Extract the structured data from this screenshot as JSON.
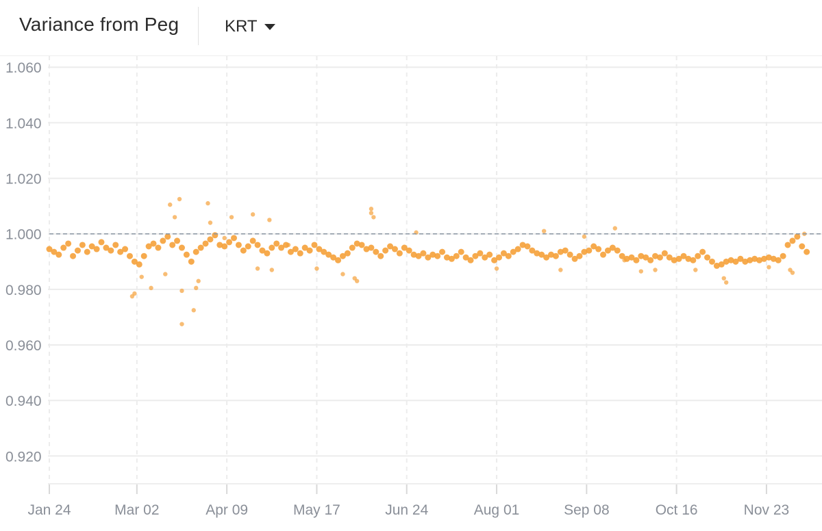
{
  "header": {
    "title": "Variance from Peg",
    "selector": {
      "value": "KRT"
    }
  },
  "colors": {
    "point": "#f5a13a",
    "grid": "#ececec",
    "peg_line": "#8a96a3",
    "tick_text": "#8a8f98"
  },
  "chart_data": {
    "type": "scatter",
    "title": "",
    "xlabel": "",
    "ylabel": "",
    "ylim": [
      0.91,
      1.064
    ],
    "xlim": [
      "Jan 24",
      "Dec 10"
    ],
    "y_ticks": [
      1.06,
      1.04,
      1.02,
      1.0,
      0.98,
      0.96,
      0.94,
      0.92
    ],
    "y_tick_labels": [
      "1.060",
      "1.040",
      "1.020",
      "1.000",
      "0.980",
      "0.960",
      "0.940",
      "0.920"
    ],
    "x_ticks": [
      "Jan 24",
      "Mar 02",
      "Apr 09",
      "May 17",
      "Jun 24",
      "Aug 01",
      "Sep 08",
      "Oct 16",
      "Nov 23"
    ],
    "x_tick_interval_days": 38,
    "reference_line": {
      "y": 1.0,
      "style": "dashed"
    },
    "grid": true,
    "legend": "none",
    "series": [
      {
        "points": [
          [
            "Jan 24",
            0.9945
          ],
          [
            "Jan 26",
            0.9935
          ],
          [
            "Jan 28",
            0.9925
          ],
          [
            "Jan 30",
            0.995
          ],
          [
            "Feb 01",
            0.9965
          ],
          [
            "Feb 03",
            0.992
          ],
          [
            "Feb 05",
            0.994
          ],
          [
            "Feb 07",
            0.996
          ],
          [
            "Feb 09",
            0.9935
          ],
          [
            "Feb 11",
            0.9955
          ],
          [
            "Feb 13",
            0.9945
          ],
          [
            "Feb 15",
            0.997
          ],
          [
            "Feb 17",
            0.995
          ],
          [
            "Feb 19",
            0.994
          ],
          [
            "Feb 21",
            0.996
          ],
          [
            "Feb 23",
            0.9935
          ],
          [
            "Feb 25",
            0.9945
          ],
          [
            "Feb 27",
            0.992
          ],
          [
            "Mar 01",
            0.99
          ],
          [
            "Mar 03",
            0.989
          ],
          [
            "Mar 05",
            0.992
          ],
          [
            "Mar 07",
            0.9955
          ],
          [
            "Mar 09",
            0.9965
          ],
          [
            "Mar 11",
            0.995
          ],
          [
            "Mar 13",
            0.9975
          ],
          [
            "Mar 15",
            0.999
          ],
          [
            "Mar 17",
            0.996
          ],
          [
            "Mar 19",
            0.9975
          ],
          [
            "Mar 21",
            0.995
          ],
          [
            "Mar 23",
            0.9925
          ],
          [
            "Mar 25",
            0.99
          ],
          [
            "Mar 27",
            0.9935
          ],
          [
            "Mar 29",
            0.995
          ],
          [
            "Mar 31",
            0.9965
          ],
          [
            "Apr 02",
            0.998
          ],
          [
            "Apr 04",
            0.9995
          ],
          [
            "Apr 06",
            0.996
          ],
          [
            "Apr 08",
            0.9955
          ],
          [
            "Apr 10",
            0.997
          ],
          [
            "Apr 12",
            0.9985
          ],
          [
            "Apr 14",
            0.996
          ],
          [
            "Apr 16",
            0.994
          ],
          [
            "Apr 18",
            0.9955
          ],
          [
            "Apr 20",
            0.9975
          ],
          [
            "Apr 22",
            0.996
          ],
          [
            "Apr 24",
            0.994
          ],
          [
            "Apr 26",
            0.993
          ],
          [
            "Apr 28",
            0.995
          ],
          [
            "Apr 30",
            0.9965
          ],
          [
            "May 02",
            0.995
          ],
          [
            "May 04",
            0.996
          ],
          [
            "May 06",
            0.9935
          ],
          [
            "May 08",
            0.9945
          ],
          [
            "May 10",
            0.993
          ],
          [
            "May 12",
            0.995
          ],
          [
            "May 14",
            0.994
          ],
          [
            "May 16",
            0.996
          ],
          [
            "May 18",
            0.9945
          ],
          [
            "May 20",
            0.9935
          ],
          [
            "May 22",
            0.9925
          ],
          [
            "May 24",
            0.9915
          ],
          [
            "May 26",
            0.9905
          ],
          [
            "May 28",
            0.992
          ],
          [
            "May 30",
            0.993
          ],
          [
            "Jun 01",
            0.995
          ],
          [
            "Jun 03",
            0.9965
          ],
          [
            "Jun 05",
            0.996
          ],
          [
            "Jun 07",
            0.9945
          ],
          [
            "Jun 09",
            0.995
          ],
          [
            "Jun 11",
            0.9935
          ],
          [
            "Jun 13",
            0.992
          ],
          [
            "Jun 15",
            0.994
          ],
          [
            "Jun 17",
            0.9955
          ],
          [
            "Jun 19",
            0.9945
          ],
          [
            "Jun 21",
            0.993
          ],
          [
            "Jun 23",
            0.995
          ],
          [
            "Jun 25",
            0.994
          ],
          [
            "Jun 27",
            0.9925
          ],
          [
            "Jun 29",
            0.992
          ],
          [
            "Jul 01",
            0.993
          ],
          [
            "Jul 03",
            0.9915
          ],
          [
            "Jul 05",
            0.9925
          ],
          [
            "Jul 07",
            0.992
          ],
          [
            "Jul 09",
            0.9935
          ],
          [
            "Jul 11",
            0.9915
          ],
          [
            "Jul 13",
            0.991
          ],
          [
            "Jul 15",
            0.992
          ],
          [
            "Jul 17",
            0.9935
          ],
          [
            "Jul 19",
            0.9915
          ],
          [
            "Jul 21",
            0.9905
          ],
          [
            "Jul 23",
            0.992
          ],
          [
            "Jul 25",
            0.993
          ],
          [
            "Jul 27",
            0.9915
          ],
          [
            "Jul 29",
            0.9925
          ],
          [
            "Jul 31",
            0.9905
          ],
          [
            "Aug 02",
            0.9915
          ],
          [
            "Aug 04",
            0.993
          ],
          [
            "Aug 06",
            0.992
          ],
          [
            "Aug 08",
            0.9935
          ],
          [
            "Aug 10",
            0.9945
          ],
          [
            "Aug 12",
            0.996
          ],
          [
            "Aug 14",
            0.9955
          ],
          [
            "Aug 16",
            0.994
          ],
          [
            "Aug 18",
            0.993
          ],
          [
            "Aug 20",
            0.9925
          ],
          [
            "Aug 22",
            0.9915
          ],
          [
            "Aug 24",
            0.9925
          ],
          [
            "Aug 26",
            0.992
          ],
          [
            "Aug 28",
            0.9935
          ],
          [
            "Aug 30",
            0.994
          ],
          [
            "Sep 01",
            0.9925
          ],
          [
            "Sep 03",
            0.991
          ],
          [
            "Sep 05",
            0.992
          ],
          [
            "Sep 07",
            0.9935
          ],
          [
            "Sep 09",
            0.994
          ],
          [
            "Sep 11",
            0.9955
          ],
          [
            "Sep 13",
            0.9945
          ],
          [
            "Sep 15",
            0.9925
          ],
          [
            "Sep 17",
            0.994
          ],
          [
            "Sep 19",
            0.995
          ],
          [
            "Sep 21",
            0.994
          ],
          [
            "Sep 23",
            0.992
          ],
          [
            "Sep 25",
            0.991
          ],
          [
            "Sep 27",
            0.9915
          ],
          [
            "Sep 29",
            0.9905
          ],
          [
            "Oct 01",
            0.992
          ],
          [
            "Oct 03",
            0.9915
          ],
          [
            "Oct 05",
            0.9905
          ],
          [
            "Oct 07",
            0.992
          ],
          [
            "Oct 09",
            0.9915
          ],
          [
            "Oct 11",
            0.993
          ],
          [
            "Oct 13",
            0.9915
          ],
          [
            "Oct 15",
            0.9905
          ],
          [
            "Oct 17",
            0.991
          ],
          [
            "Oct 19",
            0.992
          ],
          [
            "Oct 21",
            0.991
          ],
          [
            "Oct 23",
            0.9905
          ],
          [
            "Oct 25",
            0.992
          ],
          [
            "Oct 27",
            0.9935
          ],
          [
            "Oct 29",
            0.9915
          ],
          [
            "Oct 31",
            0.99
          ],
          [
            "Nov 02",
            0.9885
          ],
          [
            "Nov 04",
            0.989
          ],
          [
            "Nov 06",
            0.99
          ],
          [
            "Nov 08",
            0.9905
          ],
          [
            "Nov 10",
            0.99
          ],
          [
            "Nov 12",
            0.991
          ],
          [
            "Nov 14",
            0.99
          ],
          [
            "Nov 16",
            0.9905
          ],
          [
            "Nov 18",
            0.991
          ],
          [
            "Nov 20",
            0.9905
          ],
          [
            "Nov 22",
            0.991
          ],
          [
            "Nov 24",
            0.9915
          ],
          [
            "Nov 26",
            0.991
          ],
          [
            "Nov 28",
            0.9905
          ],
          [
            "Nov 30",
            0.992
          ],
          [
            "Dec 02",
            0.996
          ],
          [
            "Dec 04",
            0.9975
          ],
          [
            "Dec 06",
            0.999
          ],
          [
            "Dec 08",
            0.9955
          ],
          [
            "Dec 10",
            0.9935
          ]
        ]
      },
      {
        "points": [
          [
            "Feb 28",
            0.9775
          ],
          [
            "Mar 01",
            0.9785
          ],
          [
            "Mar 04",
            0.9845
          ],
          [
            "Mar 08",
            0.9805
          ],
          [
            "Mar 14",
            0.9855
          ],
          [
            "Mar 16",
            1.0105
          ],
          [
            "Mar 18",
            1.006
          ],
          [
            "Mar 20",
            1.0125
          ],
          [
            "Mar 21",
            0.9795
          ],
          [
            "Mar 21",
            0.9675
          ],
          [
            "Mar 26",
            0.9725
          ],
          [
            "Mar 27",
            0.9805
          ],
          [
            "Mar 28",
            0.983
          ],
          [
            "Apr 01",
            1.011
          ],
          [
            "Apr 02",
            1.004
          ],
          [
            "Apr 08",
            0.9985
          ],
          [
            "Apr 11",
            1.006
          ],
          [
            "Apr 20",
            1.007
          ],
          [
            "Apr 22",
            0.9875
          ],
          [
            "Apr 27",
            1.005
          ],
          [
            "Apr 28",
            0.987
          ],
          [
            "May 05",
            0.996
          ],
          [
            "May 17",
            0.9875
          ],
          [
            "May 28",
            0.9855
          ],
          [
            "Jun 02",
            0.984
          ],
          [
            "Jun 03",
            0.983
          ],
          [
            "Jun 09",
            1.009
          ],
          [
            "Jun 09",
            1.0075
          ],
          [
            "Jun 10",
            1.006
          ],
          [
            "Jun 28",
            1.0005
          ],
          [
            "Aug 01",
            0.9875
          ],
          [
            "Aug 21",
            1.001
          ],
          [
            "Aug 28",
            0.987
          ],
          [
            "Sep 07",
            0.999
          ],
          [
            "Sep 20",
            1.002
          ],
          [
            "Sep 24",
            0.9905
          ],
          [
            "Oct 01",
            0.9865
          ],
          [
            "Oct 07",
            0.987
          ],
          [
            "Oct 24",
            0.987
          ],
          [
            "Nov 05",
            0.984
          ],
          [
            "Nov 06",
            0.9825
          ],
          [
            "Nov 24",
            0.988
          ],
          [
            "Dec 03",
            0.987
          ],
          [
            "Dec 04",
            0.986
          ],
          [
            "Dec 09",
            1.0
          ]
        ]
      }
    ]
  }
}
